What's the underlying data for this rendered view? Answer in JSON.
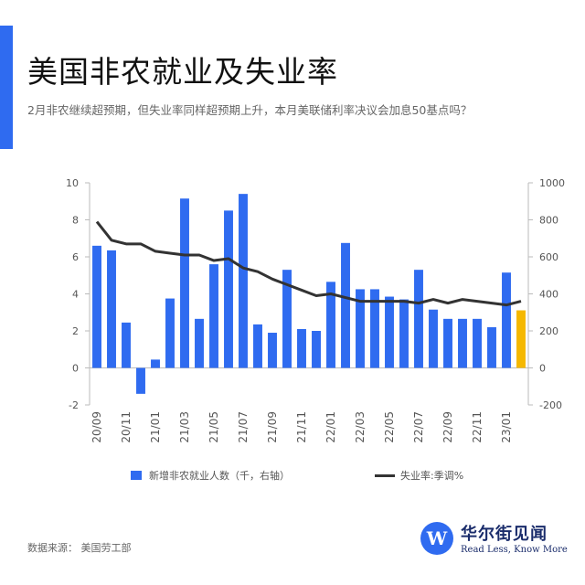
{
  "header": {
    "title": "美国非农就业及失业率",
    "subtitle": "2月非农继续超预期，但失业率同样超预期上升，本月美联储利率决议会加息50基点吗？"
  },
  "legend": {
    "bar_label": "新增非农就业人数（千，右轴）",
    "line_label": "失业率:季调%"
  },
  "footer": {
    "source": "数据来源：  美国劳工部",
    "brand_cn": "华尔街见闻",
    "brand_en": "Read Less, Know More",
    "logo_letter": "W"
  },
  "colors": {
    "bar": "#2f6bf0",
    "highlight": "#f5b800",
    "line": "#333333",
    "accent": "#2f6bf0"
  },
  "chart_data": {
    "type": "bar",
    "categories": [
      "20/09",
      "20/10",
      "20/11",
      "20/12",
      "21/01",
      "21/02",
      "21/03",
      "21/04",
      "21/05",
      "21/06",
      "21/07",
      "21/08",
      "21/09",
      "21/10",
      "21/11",
      "21/12",
      "22/01",
      "22/02",
      "22/03",
      "22/04",
      "22/05",
      "22/06",
      "22/07",
      "22/08",
      "22/09",
      "22/10",
      "22/11",
      "22/12",
      "23/01",
      "23/02"
    ],
    "x_tick_labels": [
      "20/09",
      "20/11",
      "21/01",
      "21/03",
      "21/05",
      "21/07",
      "21/09",
      "21/11",
      "22/01",
      "22/03",
      "22/05",
      "22/07",
      "22/09",
      "22/11",
      "23/01"
    ],
    "series": [
      {
        "name": "新增非农就业人数（千，右轴）",
        "kind": "bar",
        "axis": "right",
        "values": [
          660,
          635,
          245,
          -140,
          45,
          375,
          915,
          265,
          560,
          850,
          940,
          235,
          190,
          530,
          210,
          200,
          465,
          675,
          425,
          425,
          385,
          370,
          530,
          315,
          265,
          265,
          265,
          220,
          515,
          311
        ],
        "highlight_last": true
      },
      {
        "name": "失业率:季调%",
        "kind": "line",
        "axis": "left",
        "values": [
          7.9,
          6.9,
          6.7,
          6.7,
          6.3,
          6.2,
          6.1,
          6.1,
          5.8,
          5.9,
          5.4,
          5.2,
          4.8,
          4.5,
          4.2,
          3.9,
          4.0,
          3.8,
          3.6,
          3.6,
          3.6,
          3.6,
          3.5,
          3.7,
          3.5,
          3.7,
          3.6,
          3.5,
          3.4,
          3.6
        ]
      }
    ],
    "y_left": {
      "min": -2,
      "max": 10,
      "ticks": [
        -2,
        0,
        2,
        4,
        6,
        8,
        10
      ]
    },
    "y_right": {
      "min": -200,
      "max": 1000,
      "ticks": [
        -200,
        0,
        200,
        400,
        600,
        800,
        1000
      ]
    },
    "grid": false,
    "legend_position": "bottom"
  }
}
